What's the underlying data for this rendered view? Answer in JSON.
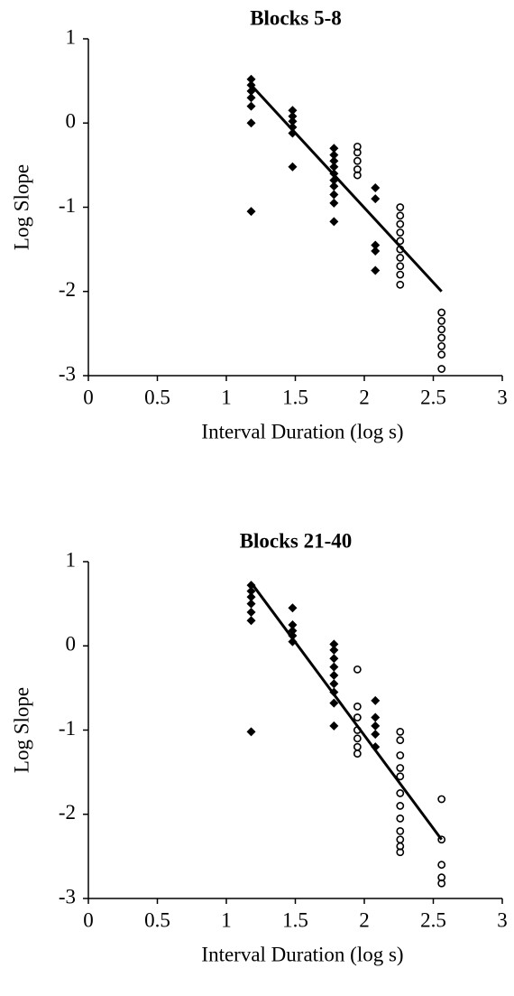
{
  "chart_data": [
    {
      "type": "scatter",
      "title": "Blocks 5-8",
      "x_label": "Interval Duration (log s)",
      "y_label": "Log Slope",
      "xlim": [
        0,
        3
      ],
      "xticks": [
        0,
        0.5,
        1,
        1.5,
        2,
        2.5,
        3
      ],
      "ylim": [
        -3,
        1
      ],
      "yticks": [
        -3,
        -2,
        -1,
        0,
        1
      ],
      "grid": false,
      "series": [
        {
          "marker": "diamond",
          "color": "#000000",
          "x": [
            1.18,
            1.18,
            1.18,
            1.18,
            1.18,
            1.18,
            1.18,
            1.48,
            1.48,
            1.48,
            1.48,
            1.48,
            1.48,
            1.78,
            1.78,
            1.78,
            1.78,
            1.78,
            1.78,
            1.78,
            1.78,
            1.78,
            1.78,
            2.08,
            2.08,
            2.08,
            2.08,
            2.08
          ],
          "y": [
            0.52,
            0.45,
            0.38,
            0.3,
            0.2,
            0.0,
            -1.05,
            0.15,
            0.08,
            0.02,
            -0.05,
            -0.12,
            -0.52,
            -0.3,
            -0.38,
            -0.45,
            -0.52,
            -0.6,
            -0.68,
            -0.75,
            -0.85,
            -0.95,
            -1.17,
            -0.77,
            -0.9,
            -1.45,
            -1.52,
            -1.75
          ]
        },
        {
          "marker": "circle",
          "color": "#000000",
          "x": [
            1.95,
            1.95,
            1.95,
            1.95,
            1.95,
            2.26,
            2.26,
            2.26,
            2.26,
            2.26,
            2.26,
            2.26,
            2.26,
            2.26,
            2.26,
            2.56,
            2.56,
            2.56,
            2.56,
            2.56,
            2.56,
            2.56
          ],
          "y": [
            -0.28,
            -0.35,
            -0.45,
            -0.55,
            -0.62,
            -1.0,
            -1.1,
            -1.2,
            -1.3,
            -1.4,
            -1.5,
            -1.6,
            -1.7,
            -1.8,
            -1.92,
            -2.25,
            -2.35,
            -2.45,
            -2.55,
            -2.65,
            -2.75,
            -2.92
          ]
        }
      ],
      "fit_line": {
        "color": "#000000",
        "x": [
          1.18,
          2.56
        ],
        "y": [
          0.45,
          -2.0
        ]
      }
    },
    {
      "type": "scatter",
      "title": "Blocks 21-40",
      "x_label": "Interval Duration (log s)",
      "y_label": "Log Slope",
      "xlim": [
        0,
        3
      ],
      "xticks": [
        0,
        0.5,
        1,
        1.5,
        2,
        2.5,
        3
      ],
      "ylim": [
        -3,
        1
      ],
      "yticks": [
        -3,
        -2,
        -1,
        0,
        1
      ],
      "grid": false,
      "series": [
        {
          "marker": "diamond",
          "color": "#000000",
          "x": [
            1.18,
            1.18,
            1.18,
            1.18,
            1.18,
            1.18,
            1.18,
            1.48,
            1.48,
            1.48,
            1.48,
            1.48,
            1.78,
            1.78,
            1.78,
            1.78,
            1.78,
            1.78,
            1.78,
            1.78,
            1.78,
            2.08,
            2.08,
            2.08,
            2.08,
            2.08
          ],
          "y": [
            0.72,
            0.65,
            0.58,
            0.5,
            0.4,
            0.3,
            -1.02,
            0.45,
            0.25,
            0.18,
            0.12,
            0.05,
            0.02,
            -0.05,
            -0.15,
            -0.25,
            -0.35,
            -0.45,
            -0.55,
            -0.68,
            -0.95,
            -0.65,
            -0.85,
            -0.95,
            -1.05,
            -1.2
          ]
        },
        {
          "marker": "circle",
          "color": "#000000",
          "x": [
            1.95,
            1.95,
            1.95,
            1.95,
            1.95,
            1.95,
            1.95,
            2.26,
            2.26,
            2.26,
            2.26,
            2.26,
            2.26,
            2.26,
            2.26,
            2.26,
            2.26,
            2.26,
            2.26,
            2.56,
            2.56,
            2.56,
            2.56,
            2.56
          ],
          "y": [
            -0.28,
            -0.72,
            -0.85,
            -1.0,
            -1.1,
            -1.2,
            -1.28,
            -1.02,
            -1.12,
            -1.3,
            -1.45,
            -1.55,
            -1.75,
            -1.9,
            -2.05,
            -2.2,
            -2.3,
            -2.38,
            -2.45,
            -1.82,
            -2.3,
            -2.6,
            -2.75,
            -2.82
          ]
        }
      ],
      "fit_line": {
        "color": "#000000",
        "x": [
          1.18,
          2.56
        ],
        "y": [
          0.75,
          -2.3
        ]
      }
    }
  ]
}
